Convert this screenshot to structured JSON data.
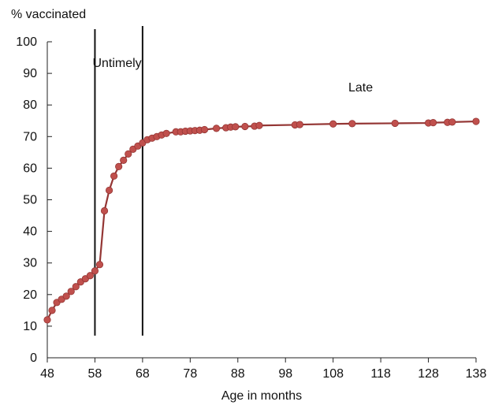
{
  "chart_data": {
    "type": "line",
    "title": "",
    "ylabel": "% vaccinated",
    "xlabel": "Age in months",
    "xlim": [
      48,
      138
    ],
    "ylim": [
      0,
      100
    ],
    "x_ticks": [
      48,
      58,
      68,
      78,
      88,
      98,
      108,
      118,
      128,
      138
    ],
    "y_ticks": [
      0,
      10,
      20,
      30,
      40,
      50,
      60,
      70,
      80,
      90,
      100
    ],
    "grid": false,
    "legend": "none",
    "vlines": [
      {
        "x": 58,
        "y_from": 7,
        "y_to": 104
      },
      {
        "x": 68,
        "y_from": 7,
        "y_to": 105
      }
    ],
    "annotations": [
      {
        "text": "Untimely",
        "x": 58,
        "y": 92
      },
      {
        "text": "Late",
        "x": 112,
        "y": 86
      }
    ],
    "series": [
      {
        "color": "#c0504d",
        "line_color": "#943634",
        "x": [
          48.0,
          49.0,
          50.0,
          51.0,
          52.0,
          53.0,
          54.0,
          55.0,
          56.0,
          57.0,
          58.0,
          59.0,
          60.0,
          61.0,
          62.0,
          63.0,
          64.0,
          65.0,
          66.0,
          67.0,
          68.0,
          69.0,
          70.0,
          71.0,
          72.0,
          73.0,
          75.0,
          76.0,
          77.0,
          78.0,
          79.0,
          80.0,
          81.0,
          83.5,
          85.5,
          86.5,
          87.5,
          89.5,
          91.5,
          92.5,
          100.0,
          101.0,
          108.0,
          112.0,
          121.0,
          128.0,
          129.0,
          132.0,
          133.0,
          138.0
        ],
        "y": [
          12.0,
          15.0,
          17.5,
          18.5,
          19.5,
          21.0,
          22.5,
          24.0,
          25.0,
          26.0,
          27.5,
          29.5,
          46.5,
          53.0,
          57.5,
          60.5,
          62.5,
          64.5,
          66.0,
          67.0,
          68.0,
          69.0,
          69.5,
          70.0,
          70.5,
          71.0,
          71.5,
          71.5,
          71.7,
          71.8,
          71.9,
          72.0,
          72.2,
          72.6,
          72.8,
          73.0,
          73.1,
          73.2,
          73.3,
          73.5,
          73.7,
          73.8,
          74.0,
          74.1,
          74.2,
          74.3,
          74.4,
          74.5,
          74.6,
          74.8
        ]
      }
    ]
  }
}
